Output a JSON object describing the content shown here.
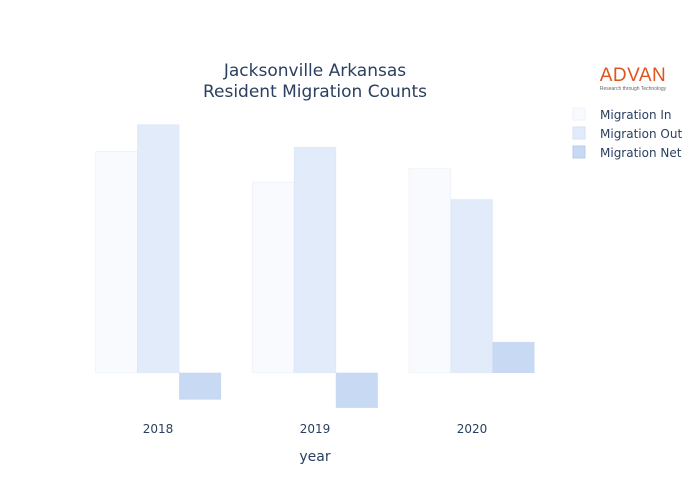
{
  "logo": {
    "name": "ADVAN",
    "tagline": "Research through Technology",
    "color": "#e2541e"
  },
  "chart_data": {
    "type": "bar",
    "title_lines": [
      "Jacksonville Arkansas",
      "Resident Migration Counts"
    ],
    "xlabel": "year",
    "ylabel": "",
    "categories": [
      "2018",
      "2019",
      "2020"
    ],
    "series": [
      {
        "name": "Migration In",
        "color": "#f9fafe",
        "values": [
          1080,
          930,
          995
        ]
      },
      {
        "name": "Migration Out",
        "color": "#e2ebfa",
        "values": [
          1210,
          1100,
          845
        ]
      },
      {
        "name": "Migration Net",
        "color": "#c7d9f3",
        "values": [
          -130,
          -170,
          150
        ]
      }
    ],
    "ylim": [
      -230,
      1330
    ],
    "legend_position": "top-right",
    "grid": false
  }
}
